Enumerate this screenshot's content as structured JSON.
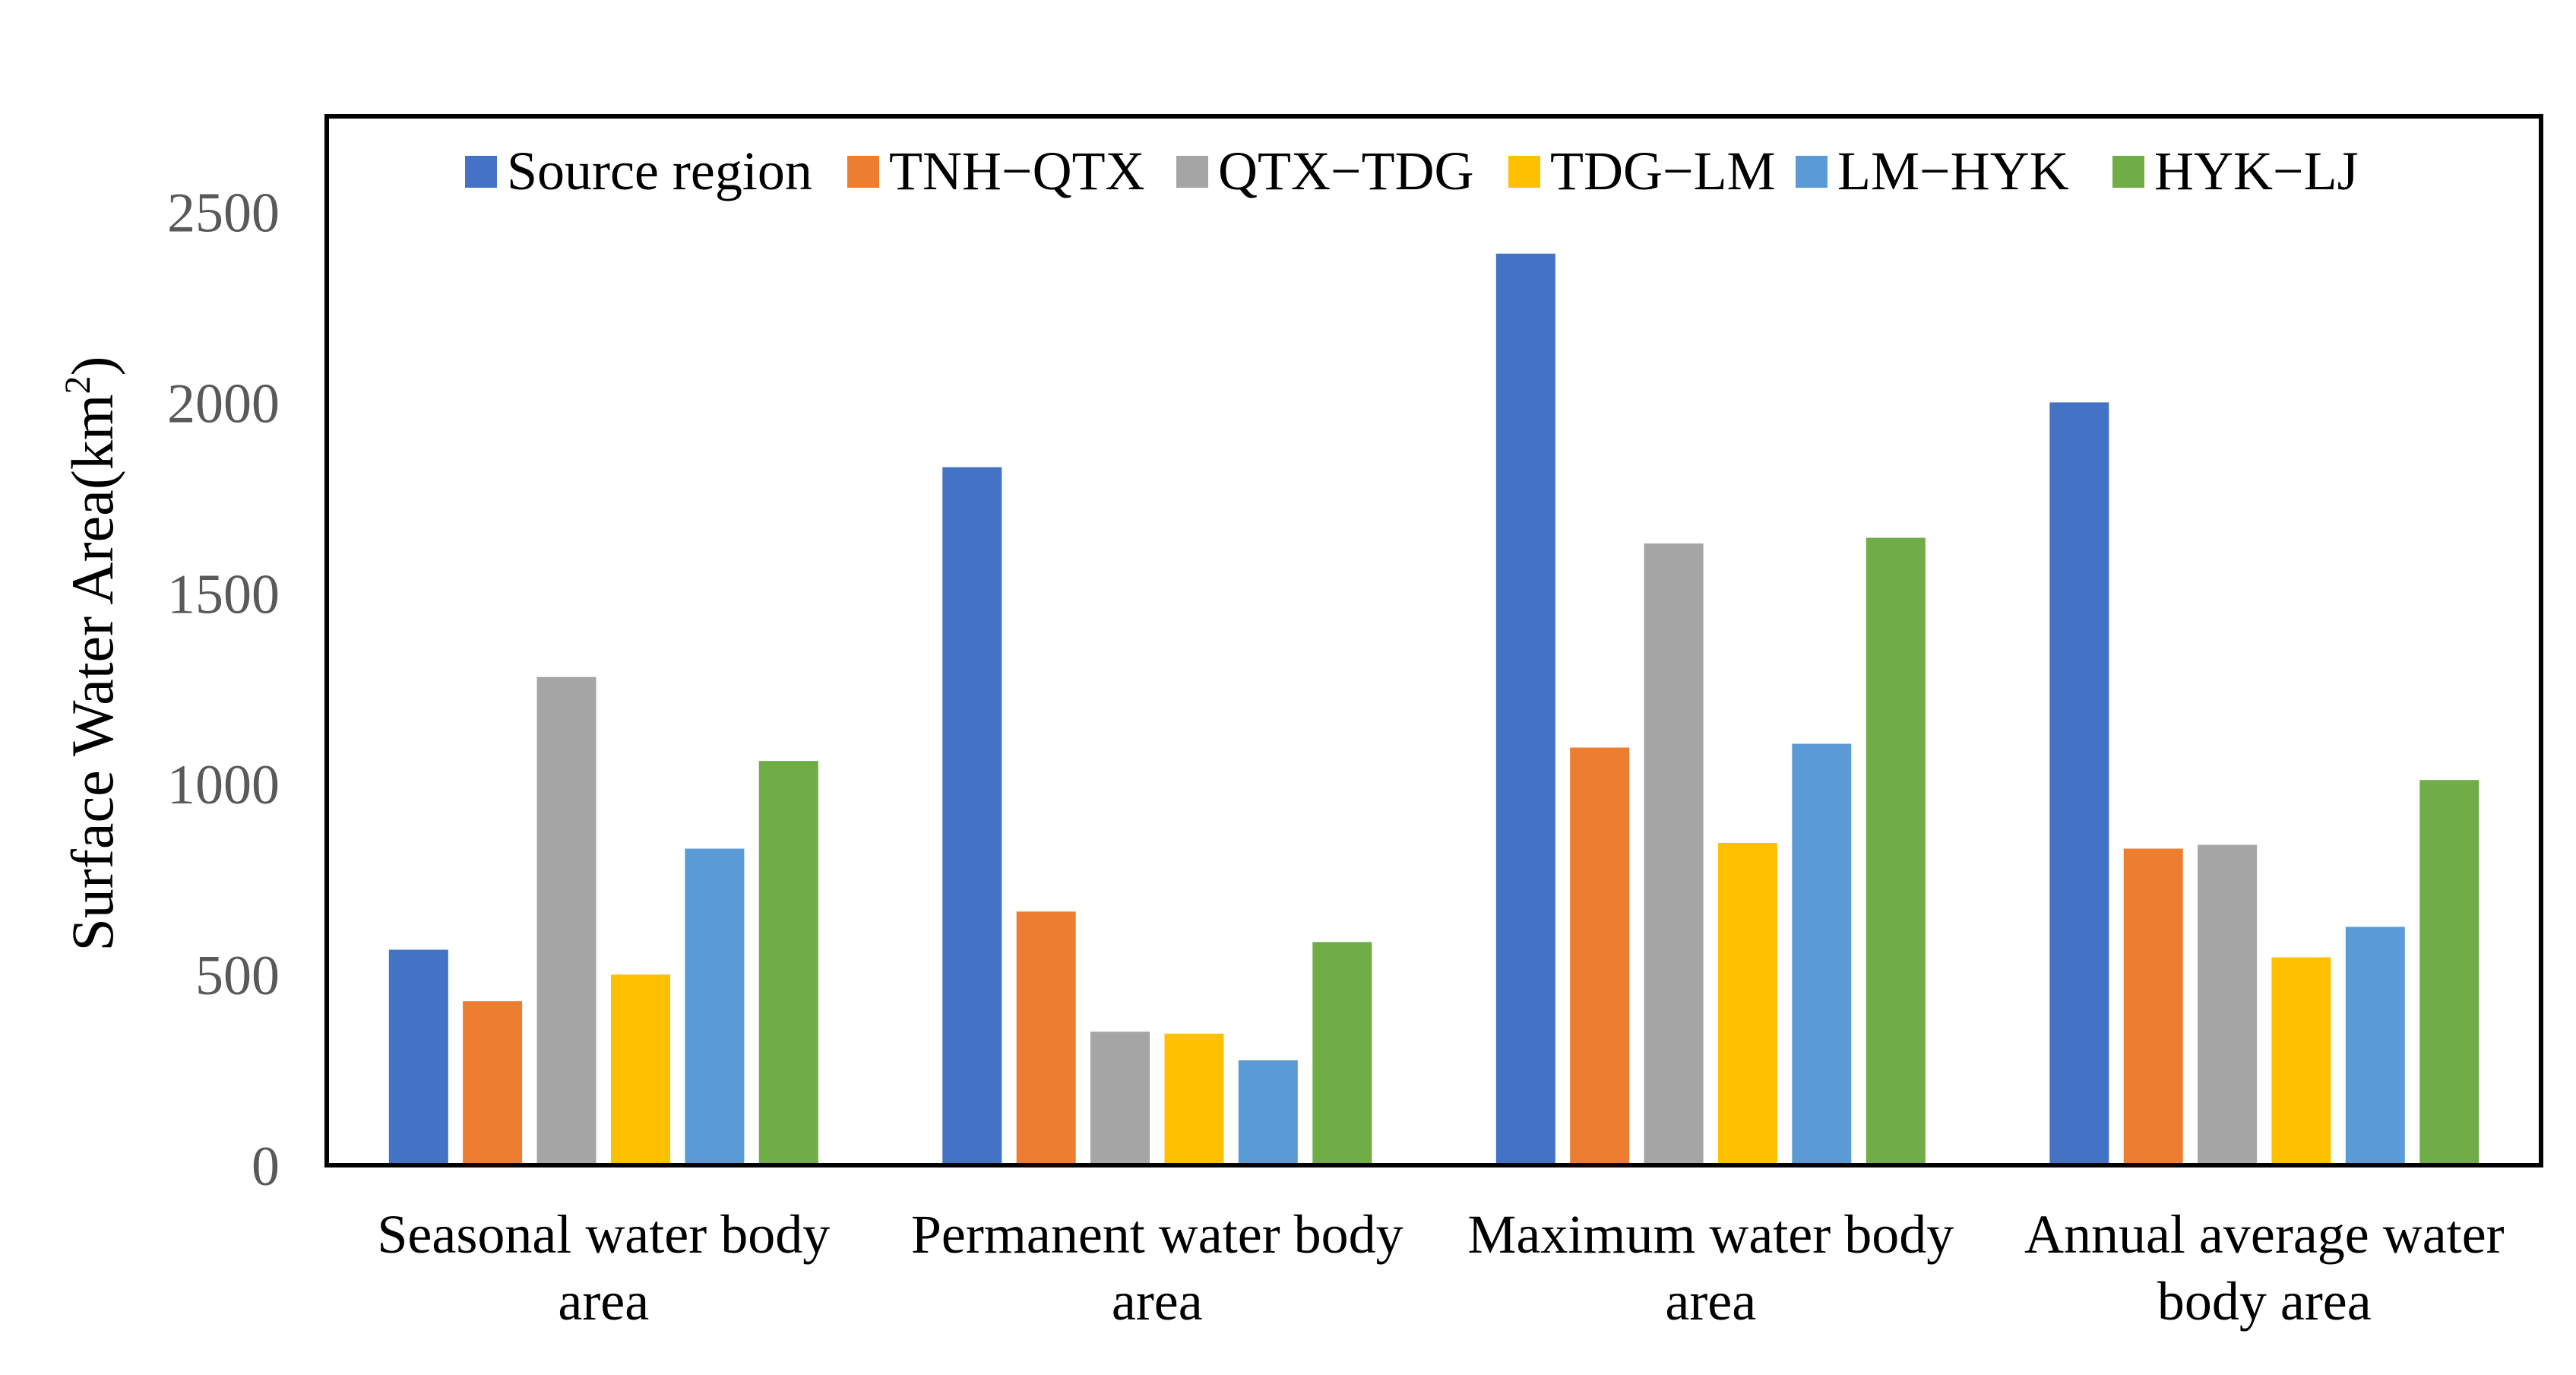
{
  "chart_data": {
    "type": "bar",
    "title": "",
    "xlabel": "",
    "ylabel": "Surface Water Area(km",
    "ylabel_superscript": "2",
    "ylabel_close": ")",
    "ylim": [
      0,
      2750
    ],
    "yticks": [
      0,
      500,
      1000,
      1500,
      2000,
      2500
    ],
    "grid": false,
    "legend_position": "top-center",
    "categories": [
      [
        "Seasonal water body",
        "area"
      ],
      [
        "Permanent water body",
        "area"
      ],
      [
        "Maximum water body",
        "area"
      ],
      [
        "Annual average water",
        "body area"
      ]
    ],
    "series": [
      {
        "name": "Source region",
        "color": "#4472C4",
        "values": [
          565,
          1830,
          2390,
          2000
        ]
      },
      {
        "name": "TNH−QTX",
        "color": "#ED7D31",
        "values": [
          430,
          665,
          1095,
          830
        ]
      },
      {
        "name": "QTX−TDG",
        "color": "#A5A5A5",
        "values": [
          1280,
          350,
          1630,
          840
        ]
      },
      {
        "name": "TDG−LM",
        "color": "#FFC000",
        "values": [
          500,
          345,
          845,
          545
        ]
      },
      {
        "name": "LM−HYK",
        "color": "#5B9BD5",
        "values": [
          830,
          275,
          1105,
          625
        ]
      },
      {
        "name": "HYK−LJ",
        "color": "#70AD47",
        "values": [
          1060,
          585,
          1645,
          1010
        ]
      }
    ]
  }
}
